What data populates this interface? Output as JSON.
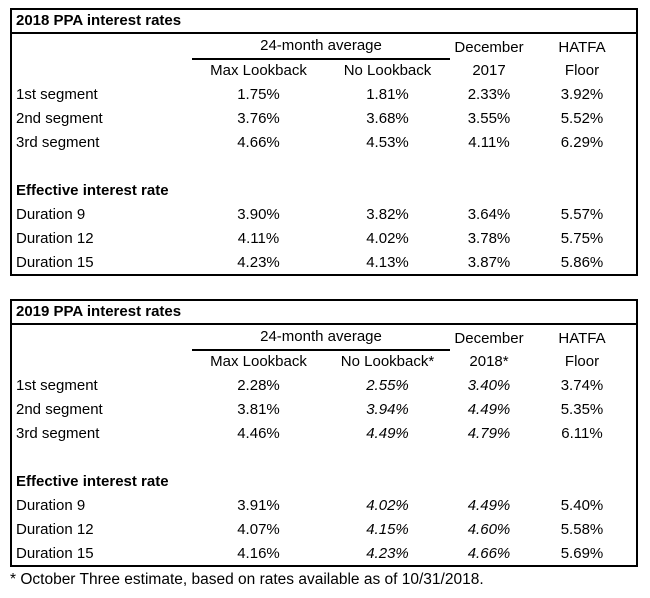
{
  "table1": {
    "title": "2018 PPA interest rates",
    "group_header": "24-month average",
    "col_max": "Max Lookback",
    "col_no": "No Lookback",
    "col_dec_top": "December",
    "col_dec_bottom": "2017",
    "col_hatfa_top": "HATFA",
    "col_hatfa_bottom": "Floor",
    "section_header": "Effective interest rate",
    "rows": [
      {
        "label": "1st segment",
        "v": [
          "1.75%",
          "1.81%",
          "2.33%",
          "3.92%"
        ]
      },
      {
        "label": "2nd segment",
        "v": [
          "3.76%",
          "3.68%",
          "3.55%",
          "5.52%"
        ]
      },
      {
        "label": "3rd segment",
        "v": [
          "4.66%",
          "4.53%",
          "4.11%",
          "6.29%"
        ]
      },
      {
        "label": "Duration 9",
        "v": [
          "3.90%",
          "3.82%",
          "3.64%",
          "5.57%"
        ]
      },
      {
        "label": "Duration 12",
        "v": [
          "4.11%",
          "4.02%",
          "3.78%",
          "5.75%"
        ]
      },
      {
        "label": "Duration 15",
        "v": [
          "4.23%",
          "4.13%",
          "3.87%",
          "5.86%"
        ]
      }
    ]
  },
  "table2": {
    "title": "2019 PPA interest rates",
    "group_header": "24-month average",
    "col_max": "Max Lookback",
    "col_no": "No Lookback*",
    "col_dec_top": "December",
    "col_dec_bottom": "2018*",
    "col_hatfa_top": "HATFA",
    "col_hatfa_bottom": "Floor",
    "section_header": "Effective interest rate",
    "rows": [
      {
        "label": "1st segment",
        "v": [
          "2.28%",
          "2.55%",
          "3.40%",
          "3.74%"
        ]
      },
      {
        "label": "2nd segment",
        "v": [
          "3.81%",
          "3.94%",
          "4.49%",
          "5.35%"
        ]
      },
      {
        "label": "3rd segment",
        "v": [
          "4.46%",
          "4.49%",
          "4.79%",
          "6.11%"
        ]
      },
      {
        "label": "Duration 9",
        "v": [
          "3.91%",
          "4.02%",
          "4.49%",
          "5.40%"
        ]
      },
      {
        "label": "Duration 12",
        "v": [
          "4.07%",
          "4.15%",
          "4.60%",
          "5.58%"
        ]
      },
      {
        "label": "Duration 15",
        "v": [
          "4.16%",
          "4.23%",
          "4.66%",
          "5.69%"
        ]
      }
    ]
  },
  "footnote": "* October Three estimate, based on rates available as of 10/31/2018."
}
